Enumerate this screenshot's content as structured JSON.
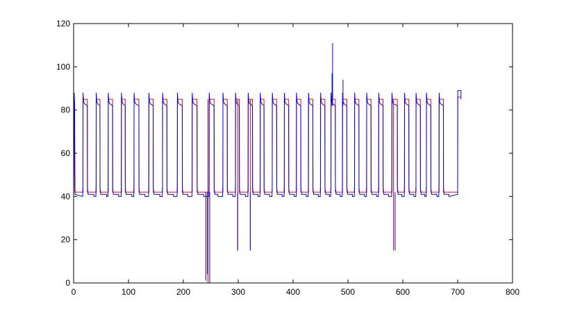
{
  "chart_data": {
    "type": "line",
    "title": "",
    "xlabel": "",
    "ylabel": "",
    "xlim": [
      0,
      800
    ],
    "ylim": [
      0,
      120
    ],
    "grid": false,
    "legend": "none",
    "x_ticks": [
      0,
      100,
      200,
      300,
      400,
      500,
      600,
      700,
      800
    ],
    "y_ticks": [
      0,
      20,
      40,
      60,
      80,
      100,
      120
    ],
    "colors": {
      "red_series": "#ff0000",
      "blue_series": "#0000ff",
      "axes": "#000000"
    },
    "cycles": [
      {
        "start": 17,
        "high_end": 25,
        "low_end": 37
      },
      {
        "start": 41,
        "high_end": 48,
        "low_end": 60
      },
      {
        "start": 63,
        "high_end": 71,
        "low_end": 82
      },
      {
        "start": 87,
        "high_end": 94,
        "low_end": 106
      },
      {
        "start": 110,
        "high_end": 119,
        "low_end": 130
      },
      {
        "start": 137,
        "high_end": 145,
        "low_end": 157
      },
      {
        "start": 162,
        "high_end": 170,
        "low_end": 182
      },
      {
        "start": 189,
        "high_end": 198,
        "low_end": 208
      },
      {
        "start": 216,
        "high_end": 225,
        "low_end": 237
      },
      {
        "start": 247,
        "high_end": 256,
        "low_end": 263
      },
      {
        "start": 272,
        "high_end": 280,
        "low_end": 290
      },
      {
        "start": 295,
        "high_end": 302,
        "low_end": 313
      },
      {
        "start": 318,
        "high_end": 326,
        "low_end": 336
      },
      {
        "start": 340,
        "high_end": 347,
        "low_end": 357
      },
      {
        "start": 362,
        "high_end": 370,
        "low_end": 380
      },
      {
        "start": 384,
        "high_end": 392,
        "low_end": 402
      },
      {
        "start": 406,
        "high_end": 414,
        "low_end": 424
      },
      {
        "start": 428,
        "high_end": 436,
        "low_end": 446
      },
      {
        "start": 450,
        "high_end": 458,
        "low_end": 466
      },
      {
        "start": 469,
        "high_end": 477,
        "low_end": 486
      },
      {
        "start": 490,
        "high_end": 498,
        "low_end": 508
      },
      {
        "start": 512,
        "high_end": 520,
        "low_end": 530
      },
      {
        "start": 534,
        "high_end": 542,
        "low_end": 552
      },
      {
        "start": 556,
        "high_end": 564,
        "low_end": 574
      },
      {
        "start": 580,
        "high_end": 590,
        "low_end": 598
      },
      {
        "start": 603,
        "high_end": 611,
        "low_end": 620
      },
      {
        "start": 624,
        "high_end": 632,
        "low_end": 640
      },
      {
        "start": 643,
        "high_end": 651,
        "low_end": 662
      },
      {
        "start": 666,
        "high_end": 674,
        "low_end": 684
      }
    ],
    "red_spikes": [
      {
        "x": 245,
        "low": 0
      },
      {
        "x": 299,
        "low": 15
      },
      {
        "x": 322,
        "low": 15
      },
      {
        "x": 583,
        "low": 15
      }
    ],
    "blue_spikes": [
      {
        "x": 241,
        "low": 1
      },
      {
        "x": 244,
        "low": 4
      },
      {
        "x": 248,
        "low": 0
      },
      {
        "x": 299,
        "low": 15
      },
      {
        "x": 322,
        "low": 15
      },
      {
        "x": 586,
        "low": 15
      }
    ],
    "blue_peaks": [
      {
        "x": 471,
        "y": 97
      },
      {
        "x": 472,
        "y": 111
      },
      {
        "x": 491,
        "y": 94
      }
    ],
    "tail": {
      "x_start": 700,
      "x_end": 706,
      "blue_y": 89,
      "red_y": 86
    }
  }
}
